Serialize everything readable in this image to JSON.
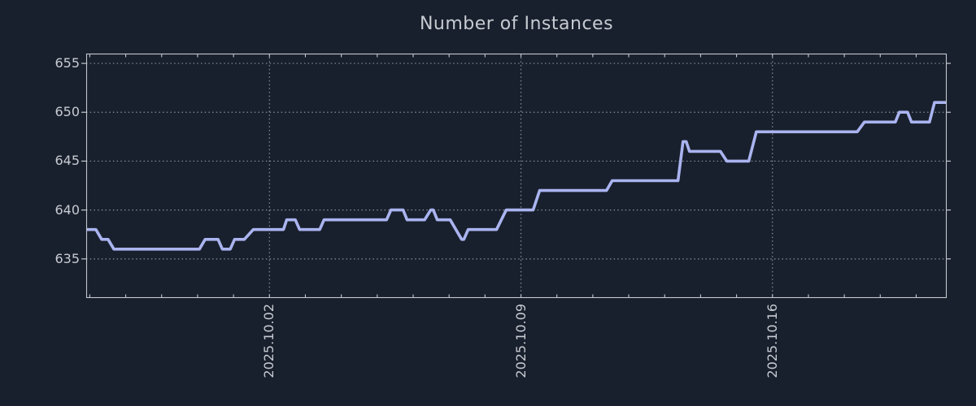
{
  "title": "Number of Instances",
  "colors": {
    "background": "#19202d",
    "line": "#aab4f0",
    "grid": "#8a9099",
    "axis": "#c3c8ce",
    "text": "#c7cbd2"
  },
  "chart_data": {
    "type": "line",
    "title": "Number of Instances",
    "xlabel": "",
    "ylabel": "",
    "x_unit": "days since 2025-09-27",
    "xlim": [
      -0.1,
      23.85
    ],
    "ylim": [
      631,
      656
    ],
    "yticks": [
      635,
      640,
      645,
      650,
      655
    ],
    "xticks": [
      {
        "pos": 5,
        "label": "2025.10.02"
      },
      {
        "pos": 12,
        "label": "2025.10.09"
      },
      {
        "pos": 19,
        "label": "2025.10.16"
      }
    ],
    "minor_xtick_step": 1,
    "grid": "dotted",
    "legend_position": "none",
    "series": [
      {
        "name": "Number of Instances",
        "color": "#aab4f0",
        "points": [
          [
            -0.1,
            638
          ],
          [
            0.17,
            638
          ],
          [
            0.33,
            637
          ],
          [
            0.51,
            637
          ],
          [
            0.67,
            636
          ],
          [
            3.05,
            636
          ],
          [
            3.21,
            637
          ],
          [
            3.57,
            637
          ],
          [
            3.69,
            636
          ],
          [
            3.91,
            636
          ],
          [
            4.03,
            637
          ],
          [
            4.3,
            637
          ],
          [
            4.55,
            638
          ],
          [
            5.39,
            638
          ],
          [
            5.48,
            639
          ],
          [
            5.72,
            639
          ],
          [
            5.84,
            638
          ],
          [
            6.4,
            638
          ],
          [
            6.52,
            639
          ],
          [
            8.26,
            639
          ],
          [
            8.38,
            640
          ],
          [
            8.72,
            640
          ],
          [
            8.83,
            639
          ],
          [
            9.32,
            639
          ],
          [
            9.49,
            640
          ],
          [
            9.56,
            640
          ],
          [
            9.67,
            639
          ],
          [
            10.03,
            639
          ],
          [
            10.35,
            637
          ],
          [
            10.41,
            637
          ],
          [
            10.53,
            638
          ],
          [
            11.32,
            638
          ],
          [
            11.59,
            640
          ],
          [
            12.34,
            640
          ],
          [
            12.52,
            642
          ],
          [
            14.38,
            642
          ],
          [
            14.54,
            643
          ],
          [
            16.37,
            643
          ],
          [
            16.51,
            647
          ],
          [
            16.6,
            647
          ],
          [
            16.69,
            646
          ],
          [
            17.55,
            646
          ],
          [
            17.73,
            645
          ],
          [
            18.34,
            645
          ],
          [
            18.55,
            648
          ],
          [
            21.36,
            648
          ],
          [
            21.56,
            649
          ],
          [
            22.42,
            649
          ],
          [
            22.53,
            650
          ],
          [
            22.76,
            650
          ],
          [
            22.87,
            649
          ],
          [
            23.37,
            649
          ],
          [
            23.51,
            651
          ],
          [
            23.85,
            651
          ]
        ]
      }
    ]
  }
}
